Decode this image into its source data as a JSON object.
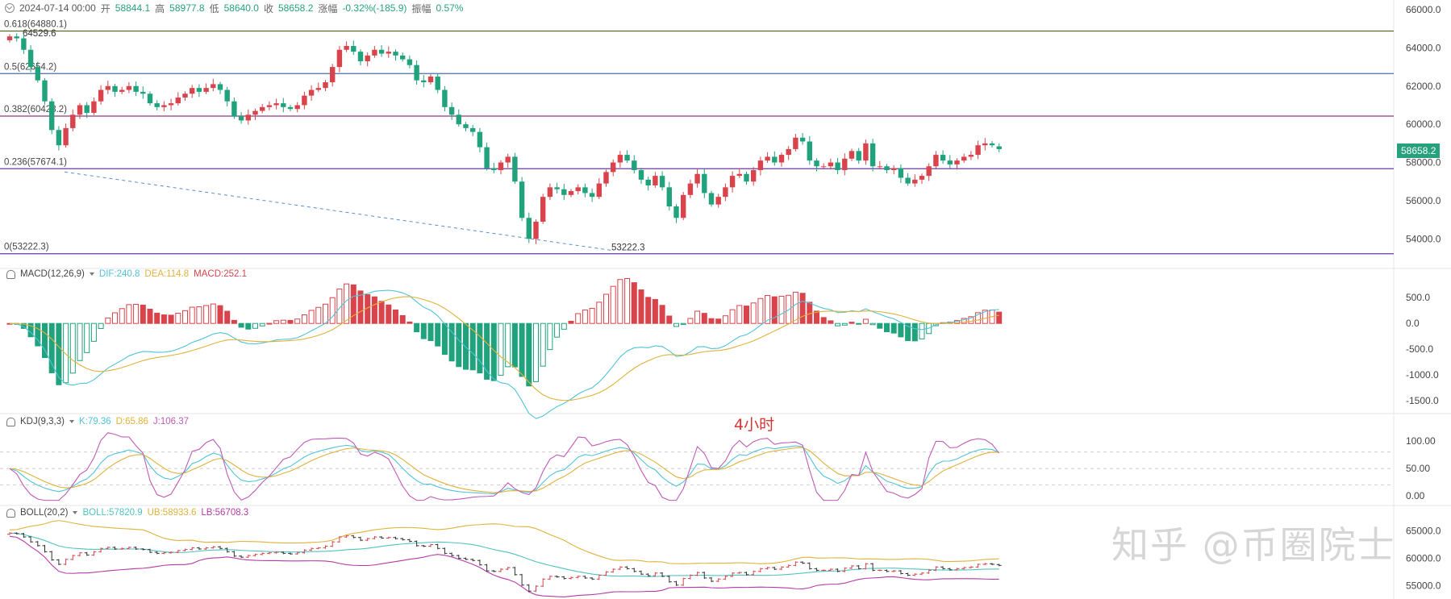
{
  "header": {
    "date": "2024-07-14 00:00",
    "open_label": "开",
    "open": "58844.1",
    "high_label": "高",
    "high": "58977.8",
    "low_label": "低",
    "low": "58640.0",
    "close_label": "收",
    "close": "58658.2",
    "change_label": "涨幅",
    "change": "-0.32%(-185.9)",
    "amp_label": "振幅",
    "amp": "0.57%"
  },
  "fib_levels": [
    {
      "label": "0.618(64880.1)",
      "value": 64880.1,
      "color": "#556b2f"
    },
    {
      "label": "0.5(62654.2)",
      "value": 62654.2,
      "color": "#4a6fa5"
    },
    {
      "label": "0.382(60428.2)",
      "value": 60428.2,
      "color": "#8b3a7a"
    },
    {
      "label": "0.236(57674.1)",
      "value": 57674.1,
      "color": "#6a3aa0"
    },
    {
      "label": "0(53222.3)",
      "value": 53222.3,
      "color": "#6a3aa0"
    }
  ],
  "annotations": {
    "high_marker": "64529.6",
    "low_marker": "53222.3",
    "timeframe": "4小时",
    "watermark": "知乎 @币圈院士",
    "last_price": "58658.2"
  },
  "indicators": {
    "macd": {
      "name": "MACD(12,26,9)",
      "dif": "DIF:240.8",
      "dea": "DEA:114.8",
      "macd": "MACD:252.1"
    },
    "kdj": {
      "name": "KDJ(9,3,3)",
      "k": "K:79.36",
      "d": "D:65.86",
      "j": "J:106.37"
    },
    "boll": {
      "name": "BOLL(20,2)",
      "mid": "BOLL:57820.9",
      "ub": "UB:58933.6",
      "lb": "LB:56708.3"
    }
  },
  "colors": {
    "up": "#d9434b",
    "down": "#20a27d",
    "dif": "#4fc3d9",
    "dea": "#e0b23a",
    "j": "#c05ab8",
    "boll_mid": "#4fc3c0",
    "boll_ub": "#e0b23a",
    "boll_lb": "#b53aa6",
    "axis_text": "#444444"
  },
  "chart_data": [
    {
      "type": "candlestick",
      "title": "",
      "ylim": [
        53000,
        66000
      ],
      "y_ticks": [
        "66000.0",
        "64000.0",
        "62000.0",
        "60000.0",
        "58000.0",
        "56000.0",
        "54000.0"
      ],
      "closes": [
        64600,
        64500,
        63900,
        63000,
        62300,
        61200,
        59700,
        58900,
        59800,
        60500,
        61000,
        60600,
        61200,
        61800,
        62000,
        61700,
        61800,
        62000,
        61700,
        61600,
        61100,
        60900,
        61000,
        61100,
        61400,
        61600,
        61900,
        61700,
        61900,
        62100,
        61800,
        61200,
        60400,
        60200,
        60500,
        60700,
        60900,
        61000,
        61100,
        60900,
        60800,
        61000,
        61500,
        61800,
        61900,
        62200,
        63000,
        63900,
        64100,
        63800,
        63300,
        63600,
        63900,
        63700,
        63800,
        63600,
        63400,
        63100,
        62300,
        62200,
        62500,
        61800,
        60900,
        60500,
        60000,
        59800,
        59600,
        58800,
        57700,
        57600,
        58000,
        58300,
        57000,
        55100,
        54000,
        54900,
        56200,
        56700,
        56600,
        56300,
        56500,
        56700,
        56400,
        56200,
        56900,
        57500,
        58000,
        58400,
        58100,
        57600,
        57100,
        56800,
        57300,
        56700,
        55700,
        55100,
        56300,
        56900,
        57400,
        56400,
        55800,
        56200,
        56700,
        57300,
        57400,
        57000,
        57600,
        58100,
        58300,
        58000,
        58400,
        58700,
        59300,
        59100,
        58100,
        57800,
        57800,
        58000,
        57600,
        58200,
        58600,
        58100,
        59000,
        57800,
        57800,
        57600,
        57700,
        57200,
        56900,
        57100,
        57300,
        57800,
        58400,
        58100,
        57900,
        58100,
        58300,
        58400,
        58900,
        59000,
        58900,
        58700
      ],
      "opens": [
        64400,
        64600,
        64500,
        63900,
        63000,
        62300,
        61200,
        59700,
        58900,
        59800,
        60500,
        61000,
        60600,
        61200,
        61800,
        62000,
        61700,
        61800,
        62000,
        61700,
        61600,
        61100,
        60900,
        61000,
        61100,
        61400,
        61600,
        61900,
        61700,
        61900,
        62100,
        61800,
        61200,
        60400,
        60200,
        60500,
        60700,
        60900,
        61000,
        61100,
        60900,
        60800,
        61000,
        61500,
        61800,
        61900,
        62200,
        63000,
        63900,
        64100,
        63800,
        63300,
        63600,
        63900,
        63700,
        63800,
        63600,
        63400,
        63100,
        62300,
        62200,
        62500,
        61800,
        60900,
        60500,
        60000,
        59800,
        59600,
        58800,
        57700,
        57600,
        58000,
        58300,
        57000,
        55100,
        54000,
        54900,
        56200,
        56700,
        56600,
        56300,
        56500,
        56700,
        56400,
        56200,
        56900,
        57500,
        58000,
        58400,
        58100,
        57600,
        57100,
        56800,
        57300,
        56700,
        55700,
        55100,
        56300,
        56900,
        57400,
        56400,
        55800,
        56200,
        56700,
        57300,
        57400,
        57000,
        57600,
        58100,
        58300,
        58000,
        58400,
        58700,
        59300,
        59100,
        58100,
        57800,
        57800,
        58000,
        57600,
        58200,
        58600,
        58100,
        59000,
        57800,
        57800,
        57600,
        57700,
        57200,
        56900,
        57100,
        57300,
        57800,
        58400,
        58100,
        57900,
        58100,
        58300,
        58400,
        58900,
        59000,
        58844.1
      ]
    },
    {
      "type": "bar",
      "title": "MACD(12,26,9)",
      "ylim": [
        -1700,
        800
      ],
      "y_ticks": [
        "500.0",
        "0.0",
        "-500.0",
        "-1000.0",
        "-1500.0"
      ]
    },
    {
      "type": "line",
      "title": "KDJ(9,3,3)",
      "ylim": [
        -10,
        125
      ],
      "y_ticks": [
        "100.00",
        "50.00",
        "0.00"
      ],
      "gridlines": [
        80,
        50,
        20
      ]
    },
    {
      "type": "line",
      "title": "BOLL(20,2)",
      "ylim": [
        53000,
        67000
      ],
      "y_ticks": [
        "65000.0",
        "60000.0",
        "55000.0"
      ]
    }
  ]
}
